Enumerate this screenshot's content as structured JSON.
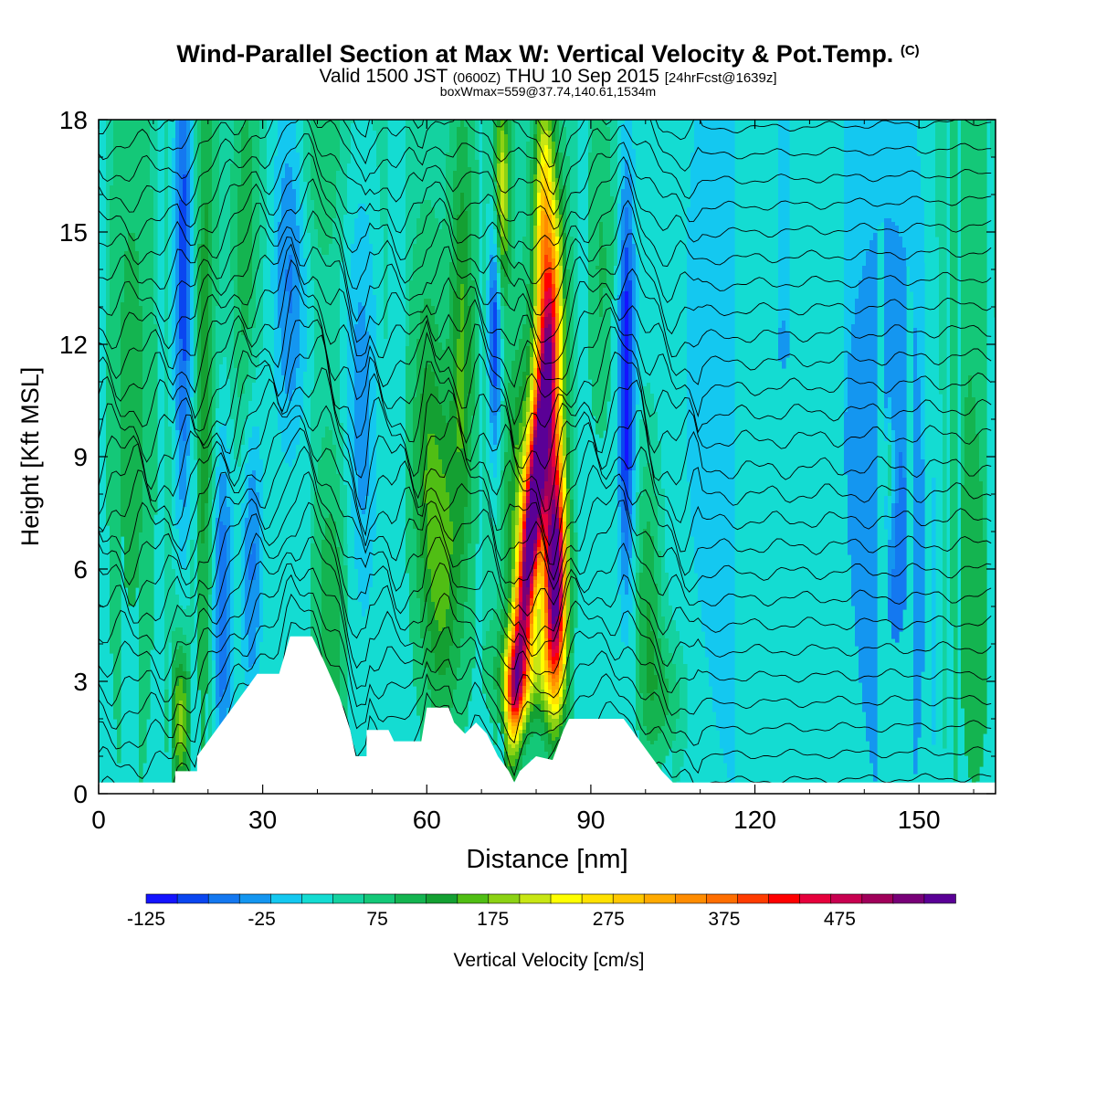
{
  "title": {
    "main": "Wind-Parallel Section at Max W: Vertical Velocity & Pot.Temp.",
    "mark": "(C)",
    "valid_prefix": "Valid 1500 JST",
    "valid_utc": "(0600Z)",
    "valid_date": "THU 10 Sep 2015",
    "forecast": "[24hrFcst@1639z]",
    "box": "boxWmax=559@37.74,140.61,1534m"
  },
  "chart_data": {
    "type": "heatmap",
    "xlabel": "Distance [nm]",
    "ylabel": "Height [Kft MSL]",
    "xlim": [
      0,
      164
    ],
    "ylim": [
      0,
      18
    ],
    "x_ticks": [
      "0",
      "30",
      "60",
      "90",
      "120",
      "150"
    ],
    "y_ticks": [
      "0",
      "3",
      "6",
      "9",
      "12",
      "15",
      "18"
    ],
    "colorbar": {
      "label": "Vertical Velocity [cm/s]",
      "tick_labels": [
        "-125",
        "-25",
        "75",
        "175",
        "275",
        "375",
        "475"
      ],
      "tick_values": [
        -125,
        -25,
        75,
        175,
        275,
        375,
        475
      ],
      "min": -125,
      "max": 575,
      "step": 25,
      "colors": [
        "#1414ff",
        "#0a46f0",
        "#1478f0",
        "#1496f0",
        "#14c8f0",
        "#14dcd2",
        "#14d2a0",
        "#14c878",
        "#14b450",
        "#14a032",
        "#50be14",
        "#8cd214",
        "#c8e614",
        "#ffff00",
        "#ffe100",
        "#ffc800",
        "#ffaa00",
        "#ff8c00",
        "#ff6e00",
        "#ff3c00",
        "#ff0000",
        "#e6003c",
        "#c80050",
        "#a0005a",
        "#780078",
        "#5a0096"
      ]
    },
    "contour_field": "Potential temperature",
    "updraft_max_cm_s": 559,
    "updraft_max_location": "37.74,140.61",
    "updraft_max_height_m": 1534
  }
}
